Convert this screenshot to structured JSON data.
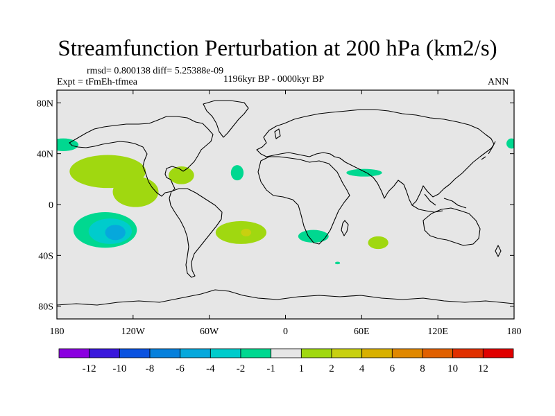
{
  "title": "Streamfunction Perturbation at 200 hPa (km2/s)",
  "subtitle_stats": "rmsd= 0.800138 diff= 5.25388e-09",
  "experiment": "Expt = tFmEh-tfmea",
  "period": "1196kyr BP - 0000kyr BP",
  "season": "ANN",
  "chart_data": {
    "type": "heatmap",
    "projection": "cylindrical-equidistant",
    "title": "Streamfunction Perturbation at 200 hPa (km2/s)",
    "units": "km2/s",
    "lon_range": [
      -180,
      180
    ],
    "lat_range": [
      -90,
      90
    ],
    "x_ticks": [
      {
        "value": -180,
        "label": "180"
      },
      {
        "value": -120,
        "label": "120W"
      },
      {
        "value": -60,
        "label": "60W"
      },
      {
        "value": 0,
        "label": "0"
      },
      {
        "value": 60,
        "label": "60E"
      },
      {
        "value": 120,
        "label": "120E"
      },
      {
        "value": 180,
        "label": "180"
      }
    ],
    "y_ticks": [
      {
        "value": 80,
        "label": "80N"
      },
      {
        "value": 40,
        "label": "40N"
      },
      {
        "value": 0,
        "label": "0"
      },
      {
        "value": -40,
        "label": "40S"
      },
      {
        "value": -80,
        "label": "80S"
      }
    ],
    "colorbar": {
      "colors": [
        "#8b00e0",
        "#3a18dc",
        "#0a52e0",
        "#0680dc",
        "#06a8dc",
        "#00cccc",
        "#00d890",
        "#e6e6e6",
        "#a0d810",
        "#c8d010",
        "#d8b000",
        "#e08800",
        "#e06000",
        "#e03000",
        "#e00000"
      ],
      "labels": [
        "-12",
        "-10",
        "-8",
        "-6",
        "-4",
        "-2",
        "-1",
        "1",
        "2",
        "4",
        "6",
        "8",
        "10",
        "12"
      ]
    },
    "anomalies": [
      {
        "name": "n-pacific-west-neg",
        "level": -1,
        "center": [
          -175,
          47
        ],
        "radii": [
          12,
          5
        ]
      },
      {
        "name": "n-pacific-pos",
        "level": 1,
        "center": [
          -140,
          26
        ],
        "radii": [
          30,
          13
        ]
      },
      {
        "name": "ne-pacific-pos",
        "level": 1,
        "center": [
          -118,
          10
        ],
        "radii": [
          18,
          12
        ]
      },
      {
        "name": "caribbean-pos",
        "level": 1,
        "center": [
          -82,
          23
        ],
        "radii": [
          10,
          7
        ]
      },
      {
        "name": "atlantic-neg",
        "level": -1,
        "center": [
          -38,
          25
        ],
        "radii": [
          5,
          6
        ]
      },
      {
        "name": "india-neg",
        "level": -1,
        "center": [
          62,
          25
        ],
        "radii": [
          14,
          3
        ]
      },
      {
        "name": "ne-pacific-east-neg",
        "level": -1,
        "center": [
          178,
          48
        ],
        "radii": [
          4,
          4
        ]
      },
      {
        "name": "s-pacific-neg-outer",
        "level": -1,
        "center": [
          -142,
          -20
        ],
        "radii": [
          25,
          14
        ]
      },
      {
        "name": "s-pacific-neg-mid",
        "level": -2,
        "center": [
          -138,
          -21
        ],
        "radii": [
          17,
          10
        ]
      },
      {
        "name": "s-pacific-neg-core",
        "level": -4,
        "center": [
          -134,
          -22
        ],
        "radii": [
          8,
          6
        ]
      },
      {
        "name": "s-atlantic-pos",
        "level": 1,
        "center": [
          -35,
          -22
        ],
        "radii": [
          20,
          9
        ]
      },
      {
        "name": "s-atlantic-pos-core",
        "level": 2,
        "center": [
          -31,
          -22
        ],
        "radii": [
          4,
          3
        ]
      },
      {
        "name": "s-africa-neg",
        "level": -1,
        "center": [
          22,
          -25
        ],
        "radii": [
          12,
          5
        ]
      },
      {
        "name": "s-indian-pos",
        "level": 1,
        "center": [
          73,
          -30
        ],
        "radii": [
          8,
          5
        ]
      },
      {
        "name": "s-indian-small-neg",
        "level": -1,
        "center": [
          41,
          -46
        ],
        "radii": [
          2,
          1
        ]
      }
    ]
  }
}
